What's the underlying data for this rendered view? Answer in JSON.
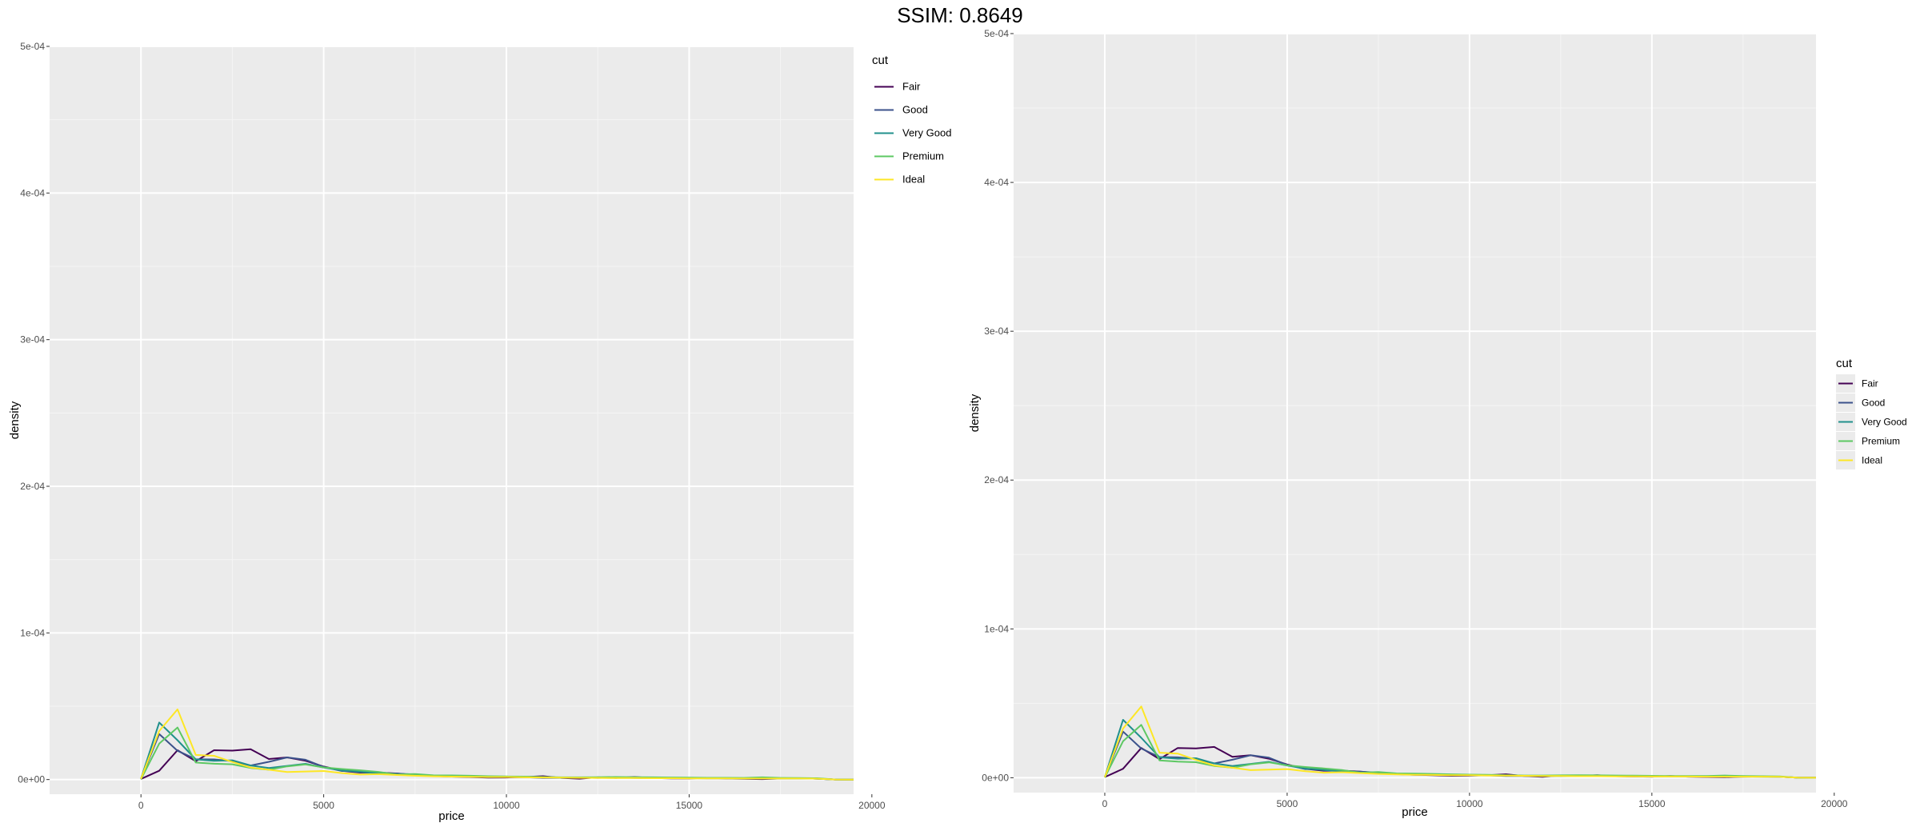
{
  "header": {
    "title": "SSIM: 0.8649"
  },
  "chart_data": [
    {
      "type": "line",
      "xlabel": "price",
      "ylabel": "density",
      "xlim": [
        -2500,
        19500
      ],
      "ylim": [
        -1e-05,
        0.0005
      ],
      "x_ticks": [
        0,
        5000,
        10000,
        15000,
        20000
      ],
      "x_tick_labels": [
        "0",
        "5000",
        "10000",
        "15000",
        "20000"
      ],
      "y_ticks": [
        0,
        0.0001,
        0.0002,
        0.0003,
        0.0004,
        0.0005
      ],
      "y_tick_labels": [
        "0e+00",
        "1e-04",
        "2e-04",
        "3e-04",
        "4e-04",
        "5e-04"
      ],
      "grid": true,
      "legend": {
        "title": "cut",
        "position": "top-right"
      },
      "x": [
        0,
        500,
        1000,
        1500,
        2000,
        2500,
        3000,
        3500,
        4000,
        4500,
        5000,
        5500,
        6000,
        6500,
        7000,
        7500,
        8000,
        8500,
        9000,
        9500,
        10000,
        10500,
        11000,
        11500,
        12000,
        12500,
        13000,
        13500,
        14000,
        14500,
        15000,
        15500,
        16000,
        16500,
        17000,
        17500,
        18000,
        18500,
        19000,
        19500
      ],
      "series": [
        {
          "name": "Fair",
          "color": "#440154",
          "values": [
            4e-07,
            6e-06,
            2e-05,
            1.25e-05,
            2e-05,
            1.97e-05,
            2.07e-05,
            1.4e-05,
            1.51e-05,
            1.28e-05,
            8.9e-06,
            6e-06,
            4.7e-06,
            4.8e-06,
            4.1e-06,
            3e-06,
            2.4e-06,
            2e-06,
            1.7e-06,
            1.3e-06,
            1.4e-06,
            1.7e-06,
            2.3e-06,
            1.1e-06,
            6e-07,
            1.5e-06,
            1.1e-06,
            1.7e-06,
            1e-06,
            8e-07,
            7e-07,
            1.2e-06,
            7e-07,
            5e-07,
            3e-07,
            7e-07,
            8e-07,
            6e-07,
            5e-08,
            0
          ]
        },
        {
          "name": "Good",
          "color": "#3B528B",
          "values": [
            5e-07,
            3.1e-05,
            1.96e-05,
            1.39e-05,
            1.37e-05,
            1.26e-05,
            9.6e-06,
            1.21e-05,
            1.51e-05,
            1.35e-05,
            8.6e-06,
            5.8e-06,
            5.8e-06,
            4.1e-06,
            4.1e-06,
            3.4e-06,
            2.6e-06,
            2.4e-06,
            2e-06,
            1.6e-06,
            1.7e-06,
            1.6e-06,
            1.1e-06,
            1.2e-06,
            1.3e-06,
            1.1e-06,
            1.4e-06,
            1.1e-06,
            1e-06,
            9e-07,
            9e-07,
            8e-07,
            8e-07,
            8e-07,
            7e-07,
            7e-07,
            7e-07,
            6e-07,
            5e-08,
            0
          ]
        },
        {
          "name": "Very Good",
          "color": "#21908C",
          "values": [
            5e-07,
            3.89e-05,
            2.68e-05,
            1.37e-05,
            1.28e-05,
            1.31e-05,
            9.6e-06,
            7.9e-06,
            9.3e-06,
            1.07e-05,
            8.2e-06,
            6.2e-06,
            5.2e-06,
            4.3e-06,
            3.5e-06,
            3.2e-06,
            2.6e-06,
            2.3e-06,
            2.1e-06,
            1.9e-06,
            1.8e-06,
            1.6e-06,
            1.5e-06,
            1.3e-06,
            1.2e-06,
            1.2e-06,
            1.1e-06,
            1.1e-06,
            1e-06,
            1e-06,
            9e-07,
            9e-07,
            9e-07,
            8e-07,
            8e-07,
            8e-07,
            7e-07,
            6e-07,
            5e-08,
            0
          ]
        },
        {
          "name": "Premium",
          "color": "#5DC863",
          "values": [
            2e-07,
            2.45e-05,
            3.55e-05,
            1.16e-05,
            1.08e-05,
            1.04e-05,
            7.9e-06,
            6.7e-06,
            9e-06,
            1.03e-05,
            8.3e-06,
            7.2e-06,
            6.3e-06,
            5.2e-06,
            3.4e-06,
            3.8e-06,
            2.9e-06,
            2.8e-06,
            2.6e-06,
            2.3e-06,
            2.1e-06,
            2e-06,
            1.7e-06,
            1.5e-06,
            1.5e-06,
            1.6e-06,
            1.7e-06,
            1.6e-06,
            1.5e-06,
            1.4e-06,
            1.3e-06,
            1.2e-06,
            1.2e-06,
            1.1e-06,
            1.5e-06,
            1.1e-06,
            1e-06,
            9e-07,
            5e-08,
            0
          ]
        },
        {
          "name": "Ideal",
          "color": "#FDE725",
          "values": [
            4e-07,
            3.31e-05,
            4.79e-05,
            1.68e-05,
            1.62e-05,
            1.2e-05,
            8.2e-06,
            6.7e-06,
            5.1e-06,
            5.5e-06,
            5.8e-06,
            4.4e-06,
            3.4e-06,
            3.7e-06,
            3.1e-06,
            2.6e-06,
            2.2e-06,
            2e-06,
            1.9e-06,
            1.7e-06,
            1.7e-06,
            1.5e-06,
            1.4e-06,
            1.3e-06,
            1.2e-06,
            1.1e-06,
            1e-06,
            1e-06,
            9e-07,
            9e-07,
            8e-07,
            8e-07,
            8e-07,
            7e-07,
            7e-07,
            7e-07,
            7e-07,
            6e-07,
            5e-08,
            0
          ]
        }
      ]
    },
    {
      "type": "line",
      "xlabel": "price",
      "ylabel": "density",
      "xlim": [
        -2500,
        19500
      ],
      "ylim": [
        -1e-05,
        0.0005
      ],
      "x_ticks": [
        0,
        5000,
        10000,
        15000,
        20000
      ],
      "x_tick_labels": [
        "0",
        "5000",
        "10000",
        "15000",
        "20000"
      ],
      "y_ticks": [
        0,
        0.0001,
        0.0002,
        0.0003,
        0.0004,
        0.0005
      ],
      "y_tick_labels": [
        "0e+00",
        "1e-04",
        "2e-04",
        "3e-04",
        "4e-04",
        "5e-04"
      ],
      "grid": true,
      "legend": {
        "title": "cut",
        "position": "right"
      },
      "x": [
        0,
        500,
        1000,
        1500,
        2000,
        2500,
        3000,
        3500,
        4000,
        4500,
        5000,
        5500,
        6000,
        6500,
        7000,
        7500,
        8000,
        8500,
        9000,
        9500,
        10000,
        10500,
        11000,
        11500,
        12000,
        12500,
        13000,
        13500,
        14000,
        14500,
        15000,
        15500,
        16000,
        16500,
        17000,
        17500,
        18000,
        18500,
        19000,
        19500
      ],
      "series": [
        {
          "name": "Fair",
          "color": "#440154",
          "values": [
            4e-07,
            6e-06,
            2e-05,
            1.25e-05,
            2e-05,
            1.97e-05,
            2.07e-05,
            1.4e-05,
            1.51e-05,
            1.28e-05,
            8.9e-06,
            6e-06,
            4.7e-06,
            4.8e-06,
            4.1e-06,
            3e-06,
            2.4e-06,
            2e-06,
            1.7e-06,
            1.3e-06,
            1.4e-06,
            1.7e-06,
            2.3e-06,
            1.1e-06,
            6e-07,
            1.5e-06,
            1.1e-06,
            1.7e-06,
            1e-06,
            8e-07,
            7e-07,
            1.2e-06,
            7e-07,
            5e-07,
            3e-07,
            7e-07,
            8e-07,
            6e-07,
            5e-08,
            0
          ]
        },
        {
          "name": "Good",
          "color": "#3B528B",
          "values": [
            5e-07,
            3.1e-05,
            1.96e-05,
            1.39e-05,
            1.37e-05,
            1.26e-05,
            9.6e-06,
            1.21e-05,
            1.51e-05,
            1.35e-05,
            8.6e-06,
            5.8e-06,
            5.8e-06,
            4.1e-06,
            4.1e-06,
            3.4e-06,
            2.6e-06,
            2.4e-06,
            2e-06,
            1.6e-06,
            1.7e-06,
            1.6e-06,
            1.1e-06,
            1.2e-06,
            1.3e-06,
            1.1e-06,
            1.4e-06,
            1.1e-06,
            1e-06,
            9e-07,
            9e-07,
            8e-07,
            8e-07,
            8e-07,
            7e-07,
            7e-07,
            7e-07,
            6e-07,
            5e-08,
            0
          ]
        },
        {
          "name": "Very Good",
          "color": "#21908C",
          "values": [
            5e-07,
            3.89e-05,
            2.68e-05,
            1.37e-05,
            1.28e-05,
            1.31e-05,
            9.6e-06,
            7.9e-06,
            9.3e-06,
            1.07e-05,
            8.2e-06,
            6.2e-06,
            5.2e-06,
            4.3e-06,
            3.5e-06,
            3.2e-06,
            2.6e-06,
            2.3e-06,
            2.1e-06,
            1.9e-06,
            1.8e-06,
            1.6e-06,
            1.5e-06,
            1.3e-06,
            1.2e-06,
            1.2e-06,
            1.1e-06,
            1.1e-06,
            1e-06,
            1e-06,
            9e-07,
            9e-07,
            9e-07,
            8e-07,
            8e-07,
            8e-07,
            7e-07,
            6e-07,
            5e-08,
            0
          ]
        },
        {
          "name": "Premium",
          "color": "#5DC863",
          "values": [
            2e-07,
            2.45e-05,
            3.55e-05,
            1.16e-05,
            1.08e-05,
            1.04e-05,
            7.9e-06,
            6.7e-06,
            9e-06,
            1.03e-05,
            8.3e-06,
            7.2e-06,
            6.3e-06,
            5.2e-06,
            3.4e-06,
            3.8e-06,
            2.9e-06,
            2.8e-06,
            2.6e-06,
            2.3e-06,
            2.1e-06,
            2e-06,
            1.7e-06,
            1.5e-06,
            1.5e-06,
            1.6e-06,
            1.7e-06,
            1.6e-06,
            1.5e-06,
            1.4e-06,
            1.3e-06,
            1.2e-06,
            1.2e-06,
            1.1e-06,
            1.5e-06,
            1.1e-06,
            1e-06,
            9e-07,
            5e-08,
            0
          ]
        },
        {
          "name": "Ideal",
          "color": "#FDE725",
          "values": [
            4e-07,
            3.31e-05,
            4.79e-05,
            1.68e-05,
            1.62e-05,
            1.2e-05,
            8.2e-06,
            6.7e-06,
            5.1e-06,
            5.5e-06,
            5.8e-06,
            4.4e-06,
            3.4e-06,
            3.7e-06,
            3.1e-06,
            2.6e-06,
            2.2e-06,
            2e-06,
            1.9e-06,
            1.7e-06,
            1.7e-06,
            1.5e-06,
            1.4e-06,
            1.3e-06,
            1.2e-06,
            1.1e-06,
            1e-06,
            1e-06,
            9e-07,
            9e-07,
            8e-07,
            8e-07,
            8e-07,
            7e-07,
            7e-07,
            7e-07,
            7e-07,
            6e-07,
            5e-08,
            0
          ]
        }
      ]
    }
  ]
}
